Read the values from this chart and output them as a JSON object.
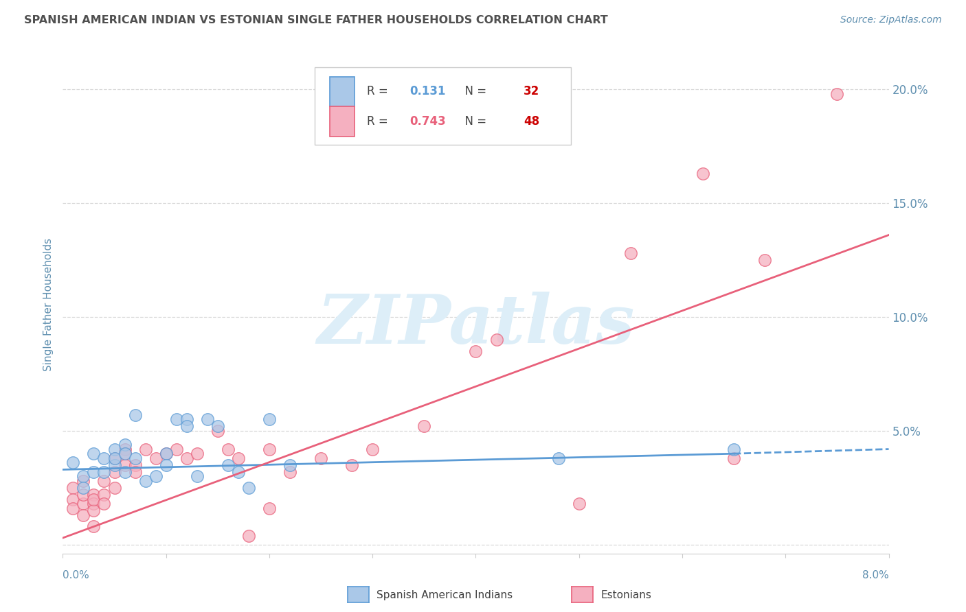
{
  "title": "SPANISH AMERICAN INDIAN VS ESTONIAN SINGLE FATHER HOUSEHOLDS CORRELATION CHART",
  "source": "Source: ZipAtlas.com",
  "ylabel": "Single Father Households",
  "legend_blue_R": "0.131",
  "legend_blue_N": "32",
  "legend_pink_R": "0.743",
  "legend_pink_N": "48",
  "legend_label_blue": "Spanish American Indians",
  "legend_label_pink": "Estonians",
  "xlim": [
    0.0,
    0.08
  ],
  "ylim": [
    -0.004,
    0.215
  ],
  "yticks": [
    0.0,
    0.05,
    0.1,
    0.15,
    0.2
  ],
  "ytick_labels": [
    "",
    "5.0%",
    "10.0%",
    "15.0%",
    "20.0%"
  ],
  "xtick_vals": [
    0.0,
    0.01,
    0.02,
    0.03,
    0.04,
    0.05,
    0.06,
    0.07,
    0.08
  ],
  "blue_scatter": [
    [
      0.001,
      0.036
    ],
    [
      0.002,
      0.03
    ],
    [
      0.002,
      0.025
    ],
    [
      0.003,
      0.032
    ],
    [
      0.003,
      0.04
    ],
    [
      0.004,
      0.038
    ],
    [
      0.004,
      0.032
    ],
    [
      0.005,
      0.042
    ],
    [
      0.005,
      0.035
    ],
    [
      0.005,
      0.038
    ],
    [
      0.006,
      0.044
    ],
    [
      0.006,
      0.04
    ],
    [
      0.006,
      0.032
    ],
    [
      0.007,
      0.038
    ],
    [
      0.007,
      0.057
    ],
    [
      0.008,
      0.028
    ],
    [
      0.009,
      0.03
    ],
    [
      0.01,
      0.04
    ],
    [
      0.01,
      0.035
    ],
    [
      0.011,
      0.055
    ],
    [
      0.012,
      0.055
    ],
    [
      0.012,
      0.052
    ],
    [
      0.013,
      0.03
    ],
    [
      0.014,
      0.055
    ],
    [
      0.015,
      0.052
    ],
    [
      0.016,
      0.035
    ],
    [
      0.017,
      0.032
    ],
    [
      0.018,
      0.025
    ],
    [
      0.02,
      0.055
    ],
    [
      0.022,
      0.035
    ],
    [
      0.048,
      0.038
    ],
    [
      0.065,
      0.042
    ]
  ],
  "pink_scatter": [
    [
      0.001,
      0.025
    ],
    [
      0.001,
      0.02
    ],
    [
      0.001,
      0.016
    ],
    [
      0.002,
      0.028
    ],
    [
      0.002,
      0.018
    ],
    [
      0.002,
      0.013
    ],
    [
      0.002,
      0.022
    ],
    [
      0.003,
      0.022
    ],
    [
      0.003,
      0.018
    ],
    [
      0.003,
      0.015
    ],
    [
      0.003,
      0.02
    ],
    [
      0.003,
      0.008
    ],
    [
      0.004,
      0.022
    ],
    [
      0.004,
      0.018
    ],
    [
      0.004,
      0.028
    ],
    [
      0.005,
      0.032
    ],
    [
      0.005,
      0.038
    ],
    [
      0.005,
      0.025
    ],
    [
      0.006,
      0.035
    ],
    [
      0.006,
      0.042
    ],
    [
      0.006,
      0.04
    ],
    [
      0.007,
      0.035
    ],
    [
      0.007,
      0.032
    ],
    [
      0.008,
      0.042
    ],
    [
      0.009,
      0.038
    ],
    [
      0.01,
      0.04
    ],
    [
      0.011,
      0.042
    ],
    [
      0.012,
      0.038
    ],
    [
      0.013,
      0.04
    ],
    [
      0.015,
      0.05
    ],
    [
      0.016,
      0.042
    ],
    [
      0.017,
      0.038
    ],
    [
      0.018,
      0.004
    ],
    [
      0.02,
      0.016
    ],
    [
      0.02,
      0.042
    ],
    [
      0.022,
      0.032
    ],
    [
      0.025,
      0.038
    ],
    [
      0.028,
      0.035
    ],
    [
      0.03,
      0.042
    ],
    [
      0.035,
      0.052
    ],
    [
      0.04,
      0.085
    ],
    [
      0.042,
      0.09
    ],
    [
      0.05,
      0.018
    ],
    [
      0.055,
      0.128
    ],
    [
      0.065,
      0.038
    ],
    [
      0.068,
      0.125
    ],
    [
      0.075,
      0.198
    ],
    [
      0.062,
      0.163
    ]
  ],
  "blue_line_solid": [
    [
      0.0,
      0.033
    ],
    [
      0.065,
      0.04
    ]
  ],
  "blue_line_dashed": [
    [
      0.065,
      0.04
    ],
    [
      0.08,
      0.042
    ]
  ],
  "pink_line": [
    [
      0.0,
      0.003
    ],
    [
      0.08,
      0.136
    ]
  ],
  "watermark_text": "ZIPatlas",
  "background_color": "#ffffff",
  "grid_color": "#d8d8d8",
  "blue_fill": "#aac8e8",
  "blue_edge": "#5b9bd5",
  "pink_fill": "#f5b0c0",
  "pink_edge": "#e8607a",
  "blue_line_color": "#5b9bd5",
  "pink_line_color": "#e8607a",
  "title_color": "#505050",
  "axis_label_color": "#6090b0",
  "watermark_color": "#ddeef8",
  "legend_R_color_blue": "#5b9bd5",
  "legend_R_color_pink": "#e8607a",
  "legend_N_color": "#cc0000"
}
